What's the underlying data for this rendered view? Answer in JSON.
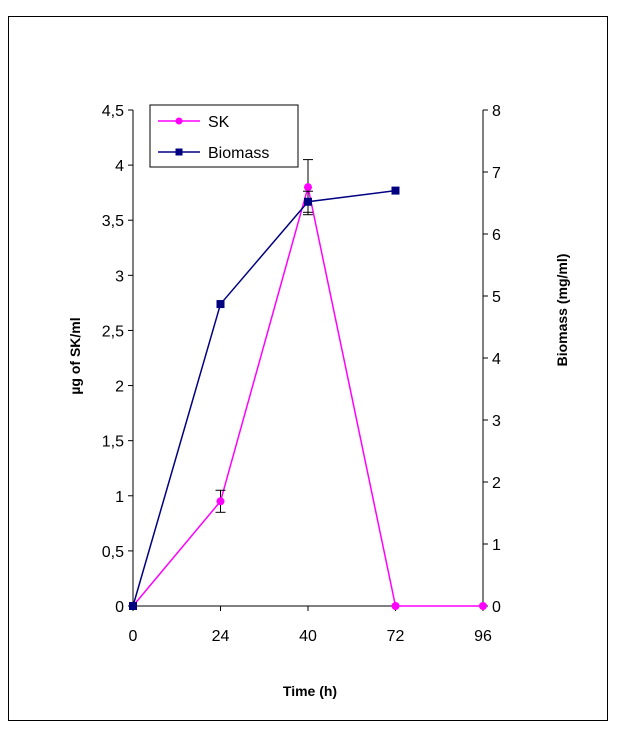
{
  "chart_data": {
    "type": "line",
    "categories": [
      "0",
      "24",
      "40",
      "72",
      "96"
    ],
    "xlabel": "Time (h)",
    "ylabel_left": "µg of SK/ml",
    "ylabel_right": "Biomass (mg/ml)",
    "ylim_left": [
      0,
      4.5
    ],
    "ylim_right": [
      0,
      8
    ],
    "yticks_left": [
      "0",
      "0,5",
      "1",
      "1,5",
      "2",
      "2,5",
      "3",
      "3,5",
      "4",
      "4,5"
    ],
    "yticks_right": [
      "0",
      "1",
      "2",
      "3",
      "4",
      "5",
      "6",
      "7",
      "8"
    ],
    "series": [
      {
        "name": "SK",
        "axis": "left",
        "color": "#ff00ff",
        "marker": "circle",
        "values": [
          0,
          0.95,
          3.8,
          0,
          0
        ],
        "error": [
          0,
          0.1,
          0.25,
          0,
          0
        ]
      },
      {
        "name": "Biomass",
        "axis": "right",
        "color": "#000080",
        "marker": "square",
        "values": [
          0,
          4.87,
          6.52,
          6.7,
          null
        ],
        "error": [
          0,
          0,
          0.17,
          0,
          0
        ]
      }
    ],
    "legend_position": "top-left",
    "grid": false
  }
}
